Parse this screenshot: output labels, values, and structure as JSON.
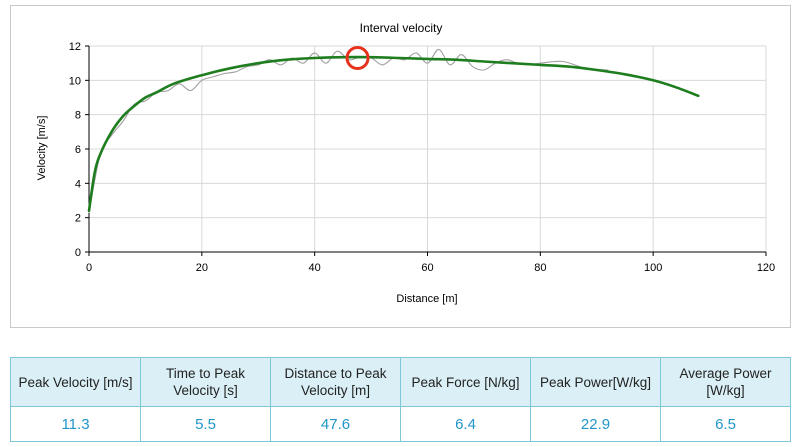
{
  "chart_data": {
    "type": "line",
    "title": "Interval velocity",
    "xlabel": "Distance [m]",
    "ylabel": "Velocity [m/s]",
    "xlim": [
      0,
      120
    ],
    "ylim": [
      0,
      12
    ],
    "x_ticks": [
      "0",
      "20",
      "40",
      "60",
      "80",
      "100",
      "120"
    ],
    "y_ticks": [
      "0",
      "2",
      "4",
      "6",
      "8",
      "10",
      "12"
    ],
    "grid": true,
    "series": [
      {
        "role": "raw",
        "color": "#a0a0a0",
        "x": [
          0,
          2,
          4,
          6,
          8,
          10,
          12,
          14,
          16,
          18,
          20,
          22,
          24,
          26,
          28,
          30,
          32,
          34,
          36,
          38,
          40,
          42,
          44,
          46,
          47.6,
          50,
          52,
          54,
          56,
          58,
          60,
          62,
          64,
          66,
          68,
          70,
          72,
          74,
          76,
          78,
          80,
          84,
          88,
          92
        ],
        "y": [
          2.3,
          5.7,
          6.8,
          7.6,
          8.6,
          8.8,
          9.3,
          9.4,
          9.8,
          9.4,
          10.0,
          10.2,
          10.4,
          10.5,
          10.8,
          10.9,
          11.2,
          10.9,
          11.3,
          11.0,
          11.6,
          11.0,
          11.7,
          11.2,
          11.3,
          11.3,
          10.9,
          11.3,
          11.2,
          11.6,
          11.0,
          11.8,
          10.9,
          11.5,
          10.8,
          10.6,
          11.0,
          11.2,
          11.0,
          10.9,
          11.0,
          11.1,
          10.7,
          10.6
        ]
      },
      {
        "role": "fit",
        "color": "#1e7d1e",
        "x": [
          0,
          1,
          2,
          4,
          6,
          8,
          10,
          12,
          15,
          20,
          25,
          30,
          35,
          40,
          45,
          50,
          55,
          60,
          65,
          70,
          75,
          80,
          85,
          90,
          95,
          100,
          104,
          108
        ],
        "y": [
          2.4,
          4.6,
          5.7,
          7.0,
          7.9,
          8.5,
          9.0,
          9.3,
          9.8,
          10.3,
          10.7,
          11.0,
          11.2,
          11.3,
          11.35,
          11.35,
          11.3,
          11.25,
          11.2,
          11.1,
          11.0,
          10.9,
          10.8,
          10.6,
          10.35,
          10.0,
          9.6,
          9.1
        ]
      }
    ],
    "annotations": [
      {
        "type": "circle-marker",
        "x": 47.6,
        "y": 11.3,
        "color": "#e8321e"
      }
    ]
  },
  "table": {
    "headers": [
      "Peak Velocity [m/s]",
      "Time to Peak Velocity [s]",
      "Distance to Peak Velocity [m]",
      "Peak Force [N/kg]",
      "Peak Power[W/kg]",
      "Average Power [W/kg]"
    ],
    "values": [
      "11.3",
      "5.5",
      "47.6",
      "6.4",
      "22.9",
      "6.5"
    ]
  }
}
